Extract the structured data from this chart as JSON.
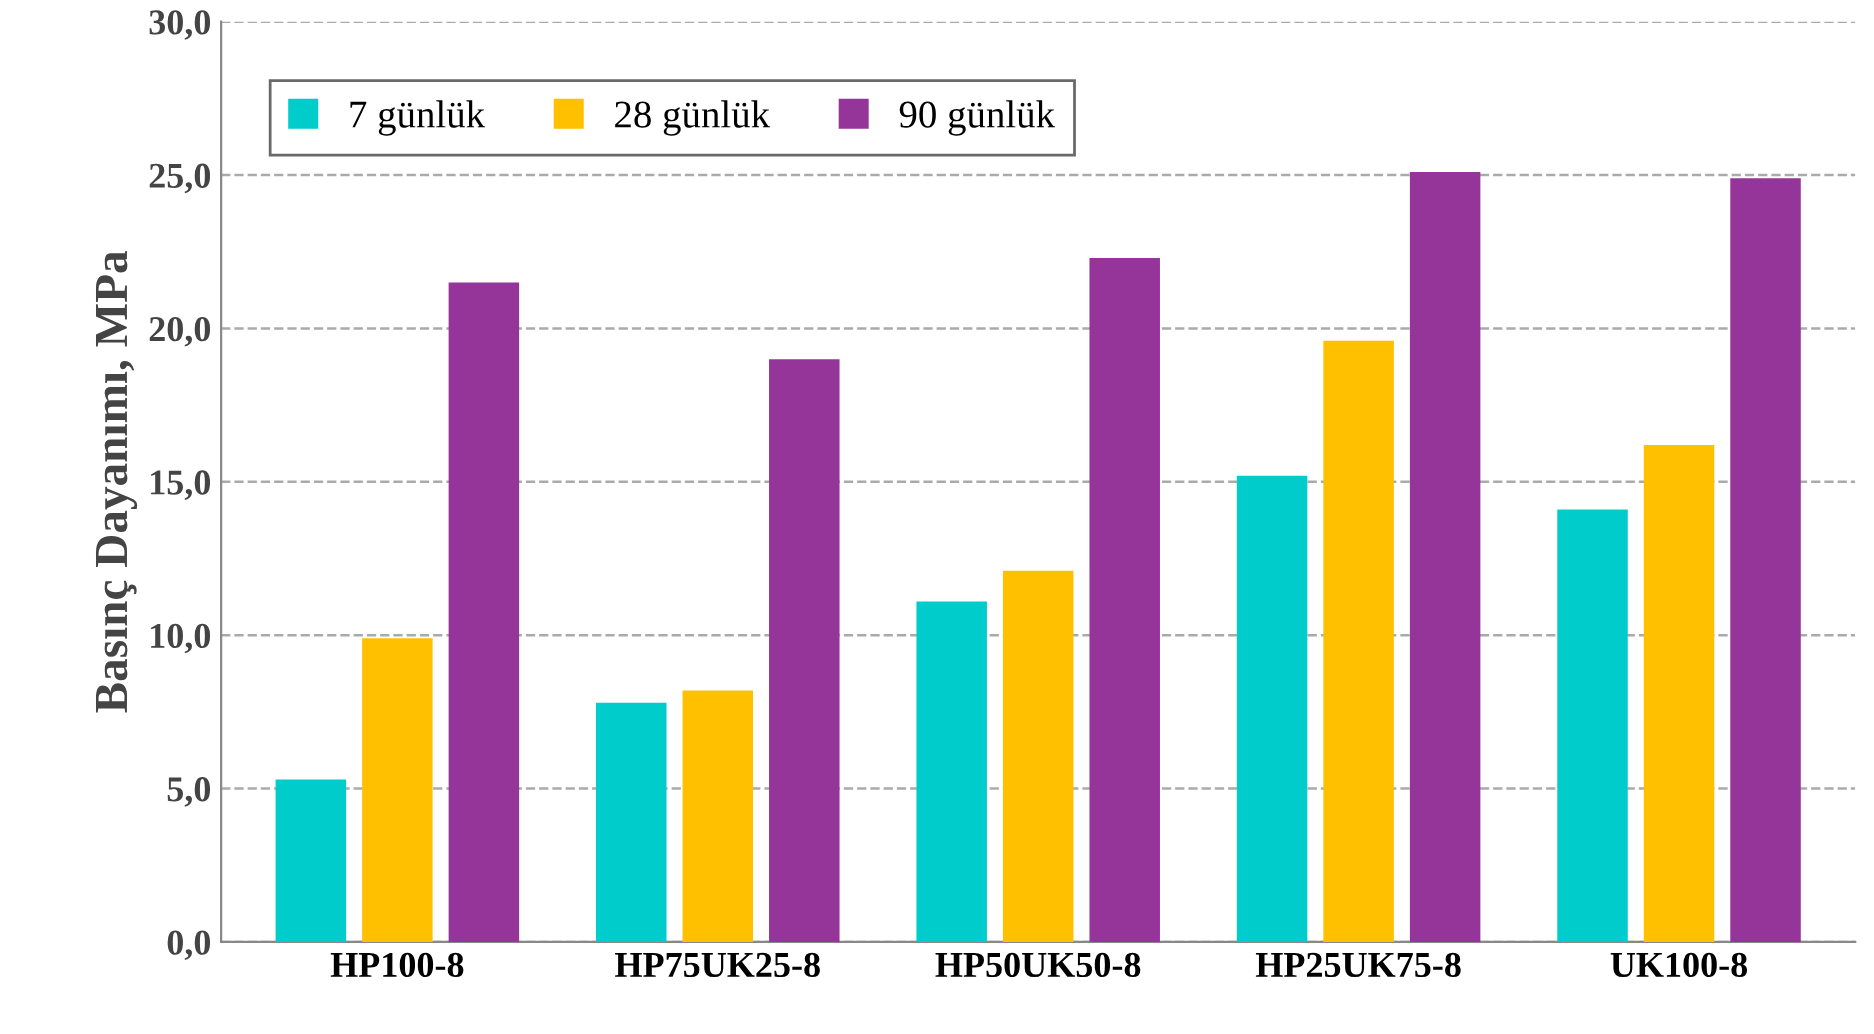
{
  "chart_data": {
    "type": "bar",
    "ylabel": "Basınç Dayanımı, MPa",
    "categories": [
      "HP100-8",
      "HP75UK25-8",
      "HP50UK50-8",
      "HP25UK75-8",
      "UK100-8"
    ],
    "series": [
      {
        "name": "7 günlük",
        "color": "#00cccc",
        "values": [
          5.3,
          7.8,
          11.1,
          15.2,
          14.1
        ]
      },
      {
        "name": "28 günlük",
        "color": "#ffc000",
        "values": [
          9.9,
          8.2,
          12.1,
          19.6,
          16.2
        ]
      },
      {
        "name": "90 günlük",
        "color": "#963599",
        "values": [
          21.5,
          19.0,
          22.3,
          25.1,
          24.9
        ]
      }
    ],
    "ylim": [
      0,
      30
    ],
    "yticks": [
      {
        "value": 0,
        "label": "0,0"
      },
      {
        "value": 5,
        "label": "5,0"
      },
      {
        "value": 10,
        "label": "10,0"
      },
      {
        "value": 15,
        "label": "15,0"
      },
      {
        "value": 20,
        "label": "20,0"
      },
      {
        "value": 25,
        "label": "25,0"
      },
      {
        "value": 30,
        "label": "30,0"
      }
    ],
    "grid": "y",
    "legend": "top left"
  }
}
